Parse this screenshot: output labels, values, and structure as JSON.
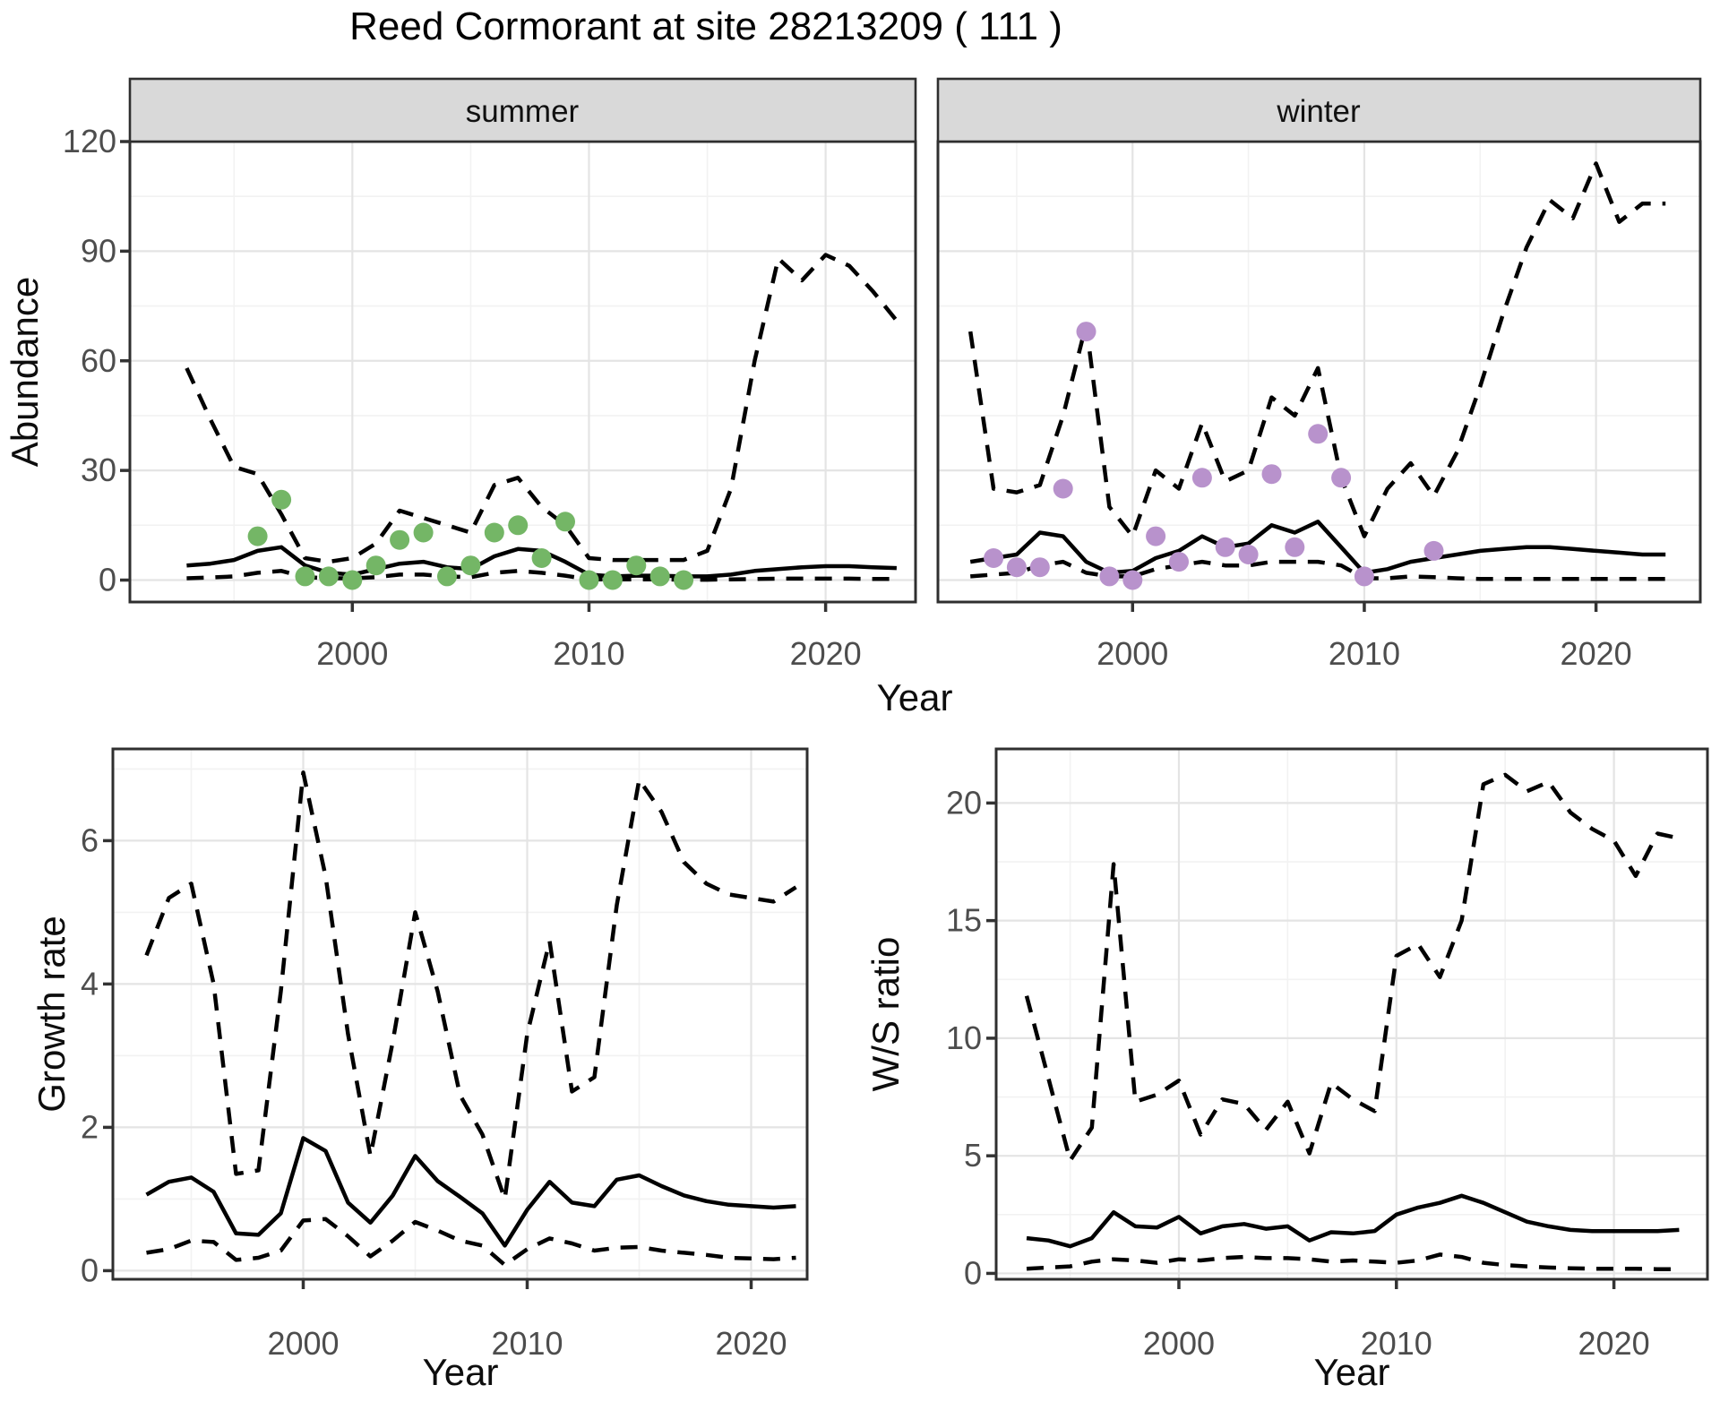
{
  "title": "Reed Cormorant at site 28213209 ( 111 )",
  "axes": {
    "abundance": "Abundance",
    "year": "Year",
    "growth": "Growth rate",
    "ws": "W/S ratio"
  },
  "facets": {
    "summer": "summer",
    "winter": "winter"
  },
  "colors": {
    "panel_bg": "#ffffff",
    "grid_major": "#e4e4e4",
    "grid_minor": "#f2f2f2",
    "panel_border": "#2f2f2f",
    "strip_fill": "#d9d9d9",
    "tick_mark": "#333333",
    "tick_label": "#4d4d4d",
    "line": "#000000",
    "summer_point": "#74b666",
    "winter_point": "#b892cc"
  },
  "chart_data": [
    {
      "id": "abundance-summer",
      "type": "line",
      "facet": "summer",
      "ylabel": "Abundance",
      "xlabel": "Year",
      "ylim": [
        0,
        120
      ],
      "yticks": [
        0,
        30,
        60,
        90,
        120
      ],
      "xticks": [
        2000,
        2010,
        2020
      ],
      "grid": true,
      "legend_position": "none",
      "series": [
        {
          "name": "observed-counts",
          "style": "points",
          "color": "#74b666",
          "x": [
            1996,
            1997,
            1998,
            1999,
            2000,
            2001,
            2002,
            2003,
            2004,
            2005,
            2006,
            2007,
            2008,
            2009,
            2010,
            2011,
            2012,
            2013,
            2014
          ],
          "y": [
            12,
            22,
            1,
            1,
            0,
            4,
            11,
            13,
            1,
            4,
            13,
            15,
            6,
            16,
            0,
            0,
            4,
            1,
            0
          ]
        },
        {
          "name": "model-median",
          "style": "solid",
          "x": [
            1993,
            1994,
            1995,
            1996,
            1997,
            1998,
            1999,
            2000,
            2001,
            2002,
            2003,
            2004,
            2005,
            2006,
            2007,
            2008,
            2009,
            2010,
            2011,
            2012,
            2013,
            2014,
            2015,
            2016,
            2017,
            2018,
            2019,
            2020,
            2021,
            2022,
            2023
          ],
          "y": [
            4,
            4.5,
            5.5,
            8,
            9,
            4,
            2,
            1.5,
            3,
            4.5,
            5,
            3.5,
            3,
            6.5,
            8.5,
            8,
            5,
            1.5,
            1,
            1.2,
            1.2,
            1,
            1,
            1.5,
            2.5,
            3,
            3.5,
            3.8,
            3.8,
            3.5,
            3.3
          ]
        },
        {
          "name": "ci-upper",
          "style": "dashed",
          "x": [
            1993,
            1994,
            1995,
            1996,
            1997,
            1998,
            1999,
            2000,
            2001,
            2002,
            2003,
            2004,
            2005,
            2006,
            2007,
            2008,
            2009,
            2010,
            2011,
            2012,
            2013,
            2014,
            2015,
            2016,
            2017,
            2018,
            2019,
            2020,
            2021,
            2022,
            2023
          ],
          "y": [
            58,
            44,
            31,
            29,
            18,
            6,
            5,
            6,
            10,
            19,
            17,
            15,
            13,
            26,
            28,
            20,
            15,
            6,
            5.5,
            5.5,
            5.5,
            5.5,
            8,
            25,
            60,
            88,
            82,
            89,
            86,
            79,
            71
          ]
        },
        {
          "name": "ci-lower",
          "style": "dashed",
          "x": [
            1993,
            1994,
            1995,
            1996,
            1997,
            1998,
            1999,
            2000,
            2001,
            2002,
            2003,
            2004,
            2005,
            2006,
            2007,
            2008,
            2009,
            2010,
            2011,
            2012,
            2013,
            2014,
            2015,
            2016,
            2017,
            2018,
            2019,
            2020,
            2021,
            2022,
            2023
          ],
          "y": [
            0.5,
            0.7,
            1,
            2,
            2.5,
            0.8,
            0.5,
            0.5,
            0.8,
            1.5,
            1.5,
            1,
            0.8,
            2,
            2.5,
            2,
            1.2,
            0.2,
            0.2,
            0.2,
            0.2,
            0.1,
            0.1,
            0.2,
            0.3,
            0.4,
            0.4,
            0.4,
            0.4,
            0.3,
            0.3
          ]
        }
      ]
    },
    {
      "id": "abundance-winter",
      "type": "line",
      "facet": "winter",
      "ylabel": "Abundance",
      "xlabel": "Year",
      "ylim": [
        0,
        120
      ],
      "yticks": [
        0,
        30,
        60,
        90,
        120
      ],
      "xticks": [
        2000,
        2010,
        2020
      ],
      "grid": true,
      "legend_position": "none",
      "series": [
        {
          "name": "observed-counts",
          "style": "points",
          "color": "#b892cc",
          "x": [
            1994,
            1995,
            1996,
            1997,
            1998,
            1999,
            2000,
            2001,
            2002,
            2003,
            2004,
            2005,
            2006,
            2007,
            2008,
            2009,
            2010,
            2013
          ],
          "y": [
            6,
            3.5,
            3.5,
            25,
            68,
            1,
            0,
            12,
            5,
            28,
            9,
            7,
            29,
            9,
            40,
            28,
            1,
            8
          ]
        },
        {
          "name": "model-median",
          "style": "solid",
          "x": [
            1993,
            1994,
            1995,
            1996,
            1997,
            1998,
            1999,
            2000,
            2001,
            2002,
            2003,
            2004,
            2005,
            2006,
            2007,
            2008,
            2009,
            2010,
            2011,
            2012,
            2013,
            2014,
            2015,
            2016,
            2017,
            2018,
            2019,
            2020,
            2021,
            2022,
            2023
          ],
          "y": [
            5,
            6,
            7,
            13,
            12,
            5,
            2,
            2.5,
            6,
            8,
            12,
            9,
            10,
            15,
            13,
            16,
            9,
            2,
            3,
            5,
            6,
            7,
            8,
            8.5,
            9,
            9,
            8.5,
            8,
            7.5,
            7,
            7
          ]
        },
        {
          "name": "ci-upper",
          "style": "dashed",
          "x": [
            1993,
            1994,
            1995,
            1996,
            1997,
            1998,
            1999,
            2000,
            2001,
            2002,
            2003,
            2004,
            2005,
            2006,
            2007,
            2008,
            2009,
            2010,
            2011,
            2012,
            2013,
            2014,
            2015,
            2016,
            2017,
            2018,
            2019,
            2020,
            2021,
            2022,
            2023
          ],
          "y": [
            68,
            25,
            24,
            26,
            45,
            70,
            20,
            12,
            30,
            25,
            43,
            27,
            30,
            50,
            45,
            58,
            28,
            12,
            25,
            32,
            23,
            35,
            53,
            73,
            91,
            104,
            99,
            114,
            98,
            103,
            103
          ]
        },
        {
          "name": "ci-lower",
          "style": "dashed",
          "x": [
            1993,
            1994,
            1995,
            1996,
            1997,
            1998,
            1999,
            2000,
            2001,
            2002,
            2003,
            2004,
            2005,
            2006,
            2007,
            2008,
            2009,
            2010,
            2011,
            2012,
            2013,
            2014,
            2015,
            2016,
            2017,
            2018,
            2019,
            2020,
            2021,
            2022,
            2023
          ],
          "y": [
            1,
            1.5,
            2,
            4,
            5,
            2,
            1,
            1,
            3,
            4,
            5,
            4,
            4,
            5,
            5,
            5,
            4,
            0.5,
            0.5,
            1,
            0.8,
            0.5,
            0.3,
            0.3,
            0.3,
            0.3,
            0.3,
            0.3,
            0.3,
            0.3,
            0.3
          ]
        }
      ]
    },
    {
      "id": "growth-rate",
      "type": "line",
      "facet": null,
      "ylabel": "Growth rate",
      "xlabel": "Year",
      "ylim": [
        0,
        7
      ],
      "yticks": [
        0,
        2,
        4,
        6
      ],
      "xticks": [
        2000,
        2010,
        2020
      ],
      "grid": true,
      "legend_position": "none",
      "series": [
        {
          "name": "model-median",
          "style": "solid",
          "x": [
            1993,
            1994,
            1995,
            1996,
            1997,
            1998,
            1999,
            2000,
            2001,
            2002,
            2003,
            2004,
            2005,
            2006,
            2007,
            2008,
            2009,
            2010,
            2011,
            2012,
            2013,
            2014,
            2015,
            2016,
            2017,
            2018,
            2019,
            2020,
            2021,
            2022
          ],
          "y": [
            1.06,
            1.24,
            1.3,
            1.1,
            0.52,
            0.5,
            0.8,
            1.85,
            1.67,
            0.95,
            0.67,
            1.05,
            1.6,
            1.25,
            1.03,
            0.8,
            0.35,
            0.85,
            1.24,
            0.95,
            0.9,
            1.27,
            1.33,
            1.18,
            1.05,
            0.97,
            0.92,
            0.9,
            0.88,
            0.9
          ]
        },
        {
          "name": "ci-upper",
          "style": "dashed",
          "x": [
            1993,
            1994,
            1995,
            1996,
            1997,
            1998,
            1999,
            2000,
            2001,
            2002,
            2003,
            2004,
            2005,
            2006,
            2007,
            2008,
            2009,
            2010,
            2011,
            2012,
            2013,
            2014,
            2015,
            2016,
            2017,
            2018,
            2019,
            2020,
            2021,
            2022
          ],
          "y": [
            4.4,
            5.2,
            5.4,
            4.0,
            1.35,
            1.4,
            3.9,
            6.95,
            5.5,
            3.3,
            1.6,
            3.2,
            5.0,
            3.9,
            2.45,
            1.9,
            1.0,
            3.3,
            4.6,
            2.5,
            2.7,
            5.1,
            6.85,
            6.4,
            5.7,
            5.4,
            5.25,
            5.2,
            5.15,
            5.35
          ]
        },
        {
          "name": "ci-lower",
          "style": "dashed",
          "x": [
            1993,
            1994,
            1995,
            1996,
            1997,
            1998,
            1999,
            2000,
            2001,
            2002,
            2003,
            2004,
            2005,
            2006,
            2007,
            2008,
            2009,
            2010,
            2011,
            2012,
            2013,
            2014,
            2015,
            2016,
            2017,
            2018,
            2019,
            2020,
            2021,
            2022
          ],
          "y": [
            0.25,
            0.3,
            0.42,
            0.4,
            0.15,
            0.18,
            0.28,
            0.7,
            0.72,
            0.48,
            0.2,
            0.42,
            0.68,
            0.56,
            0.42,
            0.35,
            0.08,
            0.3,
            0.45,
            0.38,
            0.28,
            0.32,
            0.33,
            0.28,
            0.25,
            0.22,
            0.18,
            0.17,
            0.16,
            0.18
          ]
        }
      ]
    },
    {
      "id": "ws-ratio",
      "type": "line",
      "facet": null,
      "ylabel": "W/S ratio",
      "xlabel": "Year",
      "ylim": [
        0,
        22
      ],
      "yticks": [
        0,
        5,
        10,
        15,
        20
      ],
      "xticks": [
        2000,
        2010,
        2020
      ],
      "grid": true,
      "legend_position": "none",
      "series": [
        {
          "name": "model-median",
          "style": "solid",
          "x": [
            1993,
            1994,
            1995,
            1996,
            1997,
            1998,
            1999,
            2000,
            2001,
            2002,
            2003,
            2004,
            2005,
            2006,
            2007,
            2008,
            2009,
            2010,
            2011,
            2012,
            2013,
            2014,
            2015,
            2016,
            2017,
            2018,
            2019,
            2020,
            2021,
            2022,
            2023
          ],
          "y": [
            1.5,
            1.4,
            1.15,
            1.5,
            2.6,
            2.0,
            1.95,
            2.4,
            1.7,
            2.0,
            2.1,
            1.9,
            2.0,
            1.4,
            1.75,
            1.7,
            1.8,
            2.5,
            2.8,
            3.0,
            3.3,
            3.0,
            2.6,
            2.2,
            2.0,
            1.85,
            1.8,
            1.8,
            1.8,
            1.8,
            1.85
          ]
        },
        {
          "name": "ci-upper",
          "style": "dashed",
          "x": [
            1993,
            1994,
            1995,
            1996,
            1997,
            1998,
            1999,
            2000,
            2001,
            2002,
            2003,
            2004,
            2005,
            2006,
            2007,
            2008,
            2009,
            2010,
            2011,
            2012,
            2013,
            2014,
            2015,
            2016,
            2017,
            2018,
            2019,
            2020,
            2021,
            2022,
            2023
          ],
          "y": [
            11.8,
            8.3,
            4.8,
            6.2,
            17.4,
            7.3,
            7.6,
            8.2,
            5.9,
            7.4,
            7.2,
            6.1,
            7.3,
            5.1,
            8.1,
            7.4,
            6.9,
            13.5,
            14.0,
            12.6,
            15.0,
            20.8,
            21.2,
            20.5,
            20.9,
            19.6,
            18.9,
            18.4,
            16.9,
            18.7,
            18.5
          ]
        },
        {
          "name": "ci-lower",
          "style": "dashed",
          "x": [
            1993,
            1994,
            1995,
            1996,
            1997,
            1998,
            1999,
            2000,
            2001,
            2002,
            2003,
            2004,
            2005,
            2006,
            2007,
            2008,
            2009,
            2010,
            2011,
            2012,
            2013,
            2014,
            2015,
            2016,
            2017,
            2018,
            2019,
            2020,
            2021,
            2022,
            2023
          ],
          "y": [
            0.2,
            0.25,
            0.3,
            0.5,
            0.6,
            0.55,
            0.45,
            0.6,
            0.55,
            0.65,
            0.7,
            0.65,
            0.65,
            0.6,
            0.5,
            0.55,
            0.5,
            0.45,
            0.55,
            0.8,
            0.7,
            0.45,
            0.35,
            0.3,
            0.25,
            0.22,
            0.2,
            0.2,
            0.2,
            0.18,
            0.18
          ]
        }
      ]
    }
  ]
}
